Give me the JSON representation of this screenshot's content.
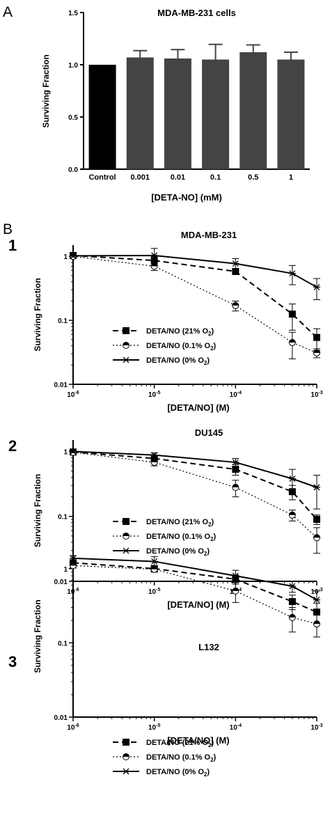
{
  "figure": {
    "panel_a_label": "A",
    "panel_b_label": "B"
  },
  "chart_data": [
    {
      "type": "bar",
      "panel": "A",
      "title": "MDA-MB-231 cells",
      "xlabel": "[DETA-NO] (mM)",
      "ylabel": "Surviving Fraction",
      "categories": [
        "Control",
        "0.001",
        "0.01",
        "0.1",
        "0.5",
        "1"
      ],
      "values": [
        1.0,
        1.07,
        1.06,
        1.05,
        1.12,
        1.05
      ],
      "errors": [
        0,
        0.065,
        0.085,
        0.145,
        0.07,
        0.07
      ],
      "colors": [
        "#000000",
        "#444444",
        "#444444",
        "#444444",
        "#444444",
        "#444444"
      ],
      "ylim": [
        0,
        1.5
      ],
      "yticks": [
        "0.0",
        "0.5",
        "1.0",
        "1.5"
      ]
    },
    {
      "type": "line",
      "panel": "1",
      "title": "MDA-MB-231",
      "xlabel": "[DETA/NO] (M)",
      "ylabel": "Surviving Fraction",
      "x": [
        1e-06,
        1e-05,
        0.0001,
        0.0005,
        0.001
      ],
      "xticks": [
        "10-6",
        "10-5",
        "10-4",
        "10-3"
      ],
      "yticks": [
        "0.01",
        "0.1",
        "1"
      ],
      "ylim": [
        0.01,
        1.5
      ],
      "scale": "log-log",
      "series": [
        {
          "name": "DETA/NO (21% O2)",
          "legend_main": "DETA/NO (21% O",
          "legend_sub": "2",
          "legend_end": ")",
          "marker": "square",
          "dash": "8,5",
          "values": [
            1.03,
            0.86,
            0.58,
            0.125,
            0.054
          ],
          "errors": [
            0.05,
            0.13,
            0.06,
            0.055,
            0.02
          ]
        },
        {
          "name": "DETA/NO (0.1% O2)",
          "legend_main": "DETA/NO (0.1% O",
          "legend_sub": "2",
          "legend_end": ")",
          "marker": "halfcircle",
          "dash": "2,3",
          "values": [
            1.0,
            0.7,
            0.17,
            0.045,
            0.031
          ],
          "errors": [
            0.05,
            0.1,
            0.03,
            0.02,
            0.005
          ]
        },
        {
          "name": "DETA/NO (0% O2)",
          "legend_main": "DETA/NO (0% O",
          "legend_sub": "2",
          "legend_end": ")",
          "marker": "star",
          "dash": "",
          "values": [
            1.02,
            1.03,
            0.77,
            0.54,
            0.33
          ],
          "errors": [
            0.05,
            0.3,
            0.15,
            0.18,
            0.12
          ]
        }
      ]
    },
    {
      "type": "line",
      "panel": "2",
      "title": "DU145",
      "xlabel": "[DETA/NO] (M)",
      "ylabel": "Surviving Fraction",
      "x": [
        1e-06,
        1e-05,
        0.0001,
        0.0005,
        0.001
      ],
      "xticks": [
        "10-6",
        "10-5",
        "10-4",
        "10-3"
      ],
      "yticks": [
        "0.01",
        "0.1",
        "1"
      ],
      "ylim": [
        0.01,
        1.5
      ],
      "scale": "log-log",
      "series": [
        {
          "name": "DETA/NO (21% O2)",
          "legend_main": "DETA/NO (21% O",
          "legend_sub": "2",
          "legend_end": ")",
          "marker": "square",
          "dash": "8,5",
          "values": [
            0.98,
            0.78,
            0.53,
            0.24,
            0.09
          ],
          "errors": [
            0.05,
            0.08,
            0.1,
            0.06,
            0.015
          ]
        },
        {
          "name": "DETA/NO (0.1% O2)",
          "legend_main": "DETA/NO (0.1% O",
          "legend_sub": "2",
          "legend_end": ")",
          "marker": "halfcircle",
          "dash": "2,3",
          "values": [
            0.97,
            0.68,
            0.28,
            0.105,
            0.047
          ],
          "errors": [
            0.05,
            0.08,
            0.08,
            0.02,
            0.02
          ]
        },
        {
          "name": "DETA/NO (0% O2)",
          "legend_main": "DETA/NO (0% O",
          "legend_sub": "2",
          "legend_end": ")",
          "marker": "star",
          "dash": "",
          "values": [
            1.0,
            0.88,
            0.68,
            0.38,
            0.28
          ],
          "errors": [
            0.05,
            0.07,
            0.1,
            0.15,
            0.15
          ]
        }
      ]
    },
    {
      "type": "line",
      "panel": "3",
      "title": "L132",
      "xlabel": "[DETA/NO] (M)",
      "ylabel": "Surviving Fraction",
      "x": [
        1e-06,
        1e-05,
        0.0001,
        0.0005,
        0.001
      ],
      "xticks": [
        "10-6",
        "10-5",
        "10-4",
        "10-3"
      ],
      "yticks": [
        "0.01",
        "0.1",
        "1"
      ],
      "ylim": [
        0.01,
        1.5
      ],
      "scale": "log-log",
      "series": [
        {
          "name": "DETA/NO (21% O2)",
          "legend_main": "DETA/NO (21% O",
          "legend_sub": "2",
          "legend_end": ")",
          "marker": "square",
          "dash": "8,5",
          "values": [
            1.2,
            1.0,
            0.72,
            0.36,
            0.26
          ],
          "errors": [
            0.08,
            0.1,
            0.1,
            0.08,
            0.08
          ]
        },
        {
          "name": "DETA/NO (0.1% O2)",
          "legend_main": "DETA/NO (0.1% O",
          "legend_sub": "2",
          "legend_end": ")",
          "marker": "halfcircle",
          "dash": "2,3",
          "values": [
            1.1,
            0.98,
            0.5,
            0.22,
            0.18
          ],
          "errors": [
            0.08,
            0.08,
            0.15,
            0.08,
            0.06
          ]
        },
        {
          "name": "DETA/NO (0% O2)",
          "legend_main": "DETA/NO (0% O",
          "legend_sub": "2",
          "legend_end": ")",
          "marker": "star",
          "dash": "",
          "values": [
            1.38,
            1.25,
            0.8,
            0.58,
            0.38
          ],
          "errors": [
            0.12,
            0.2,
            0.15,
            0.1,
            0.12
          ]
        }
      ]
    }
  ]
}
